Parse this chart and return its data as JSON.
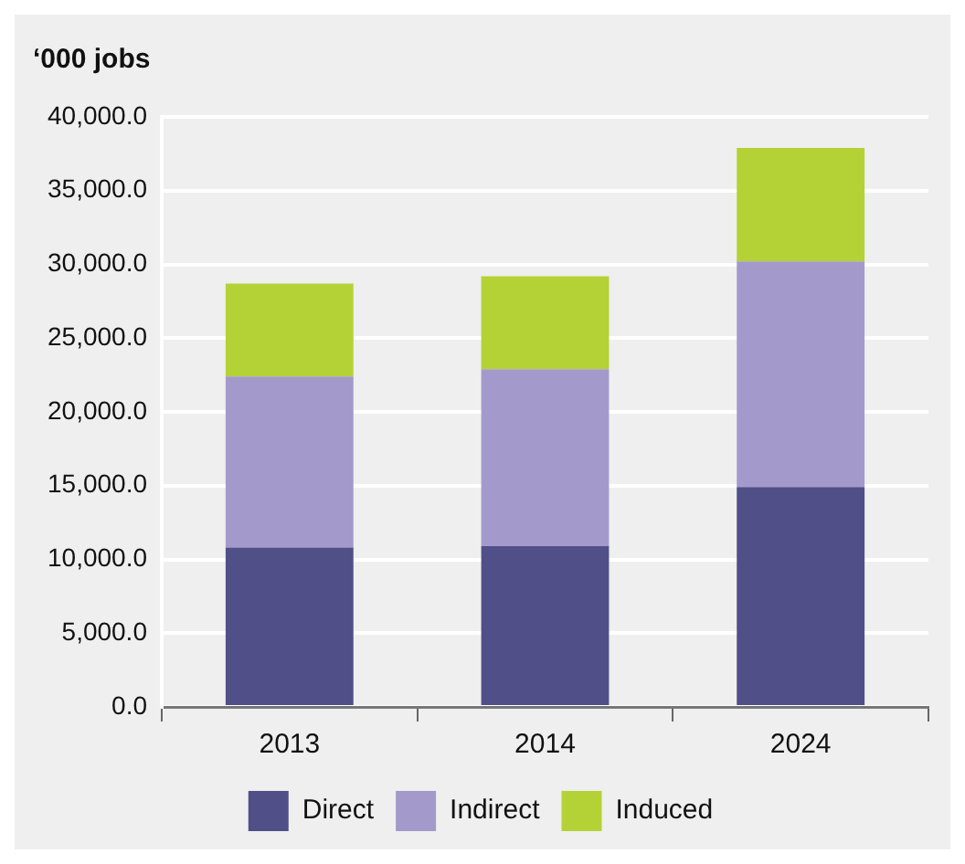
{
  "chart_data": {
    "type": "bar",
    "stacked": true,
    "ylabel": "‘000 jobs",
    "categories": [
      "2013",
      "2014",
      "2024"
    ],
    "series": [
      {
        "name": "Direct",
        "color": "#514f88",
        "values": [
          10800,
          10900,
          14900
        ]
      },
      {
        "name": "Indirect",
        "color": "#a39acb",
        "values": [
          11600,
          12000,
          15300
        ]
      },
      {
        "name": "Induced",
        "color": "#b4d235",
        "values": [
          6300,
          6300,
          7700
        ]
      }
    ],
    "ylim": [
      0,
      40000
    ],
    "yticks": [
      {
        "value": 0,
        "label": "0.0"
      },
      {
        "value": 5000,
        "label": "5,000.0"
      },
      {
        "value": 10000,
        "label": "10,000.0"
      },
      {
        "value": 15000,
        "label": "15,000.0"
      },
      {
        "value": 20000,
        "label": "20,000.0"
      },
      {
        "value": 25000,
        "label": "25,000.0"
      },
      {
        "value": 30000,
        "label": "30,000.0"
      },
      {
        "value": 35000,
        "label": "35,000.0"
      },
      {
        "value": 40000,
        "label": "40,000.0"
      }
    ],
    "grid": "y",
    "legend": "bottom"
  }
}
